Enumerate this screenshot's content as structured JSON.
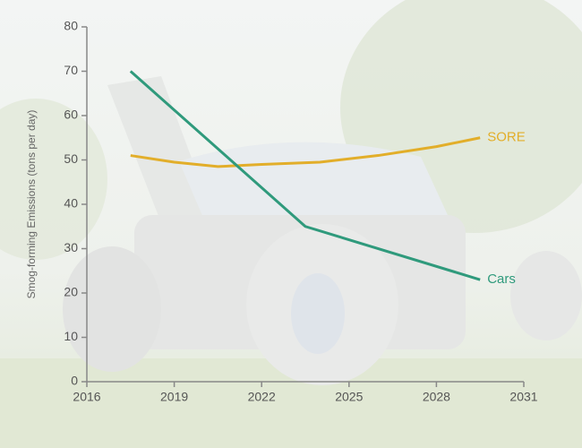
{
  "chart_data": {
    "type": "line",
    "y_label": "Smog-forming Emissions (tons per day)",
    "xlim": [
      2016,
      2031
    ],
    "xticks": [
      2016,
      2019,
      2022,
      2025,
      2028,
      2031
    ],
    "ylim": [
      0,
      80
    ],
    "yticks": [
      0,
      10,
      20,
      30,
      40,
      50,
      60,
      70,
      80
    ],
    "series": [
      {
        "name": "SORE",
        "color": "#e2ae2a",
        "x": [
          2017.5,
          2019,
          2020.5,
          2022,
          2024,
          2026,
          2028,
          2029.5
        ],
        "values": [
          51,
          49.5,
          48.5,
          49,
          49.5,
          51,
          53,
          55
        ]
      },
      {
        "name": "Cars",
        "color": "#2f9a7c",
        "x": [
          2017.5,
          2023.5,
          2029.5
        ],
        "values": [
          70,
          35,
          23
        ]
      }
    ]
  }
}
